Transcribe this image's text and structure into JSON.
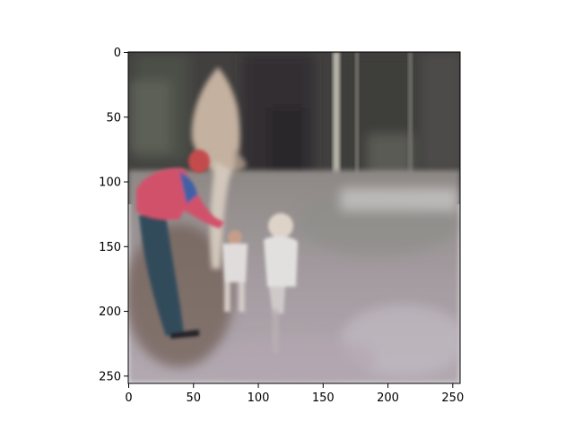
{
  "figure": {
    "background": "#ffffff",
    "axis_color": "#000000"
  },
  "image_content": {
    "description_tags": [
      "blurred-photo",
      "adult-in-red-shirt",
      "small-child-in-white",
      "white-horse",
      "trees-background",
      "dirt-ground"
    ],
    "colors": {
      "sky_trees": "#3f3d3c",
      "ground": "#a79ea3",
      "shirt_red": "#d8506a",
      "shirt_blue": "#3e5fa8",
      "pants": "#2e4a5a",
      "child_white": "#e9e6e6",
      "horse": "#c9b5a3"
    }
  },
  "axes": {
    "x": {
      "ticks": [
        {
          "value": 0,
          "label": "0"
        },
        {
          "value": 50,
          "label": "50"
        },
        {
          "value": 100,
          "label": "100"
        },
        {
          "value": 150,
          "label": "150"
        },
        {
          "value": 200,
          "label": "200"
        },
        {
          "value": 250,
          "label": "250"
        }
      ],
      "range": [
        0,
        256
      ]
    },
    "y": {
      "ticks": [
        {
          "value": 0,
          "label": "0"
        },
        {
          "value": 50,
          "label": "50"
        },
        {
          "value": 100,
          "label": "100"
        },
        {
          "value": 150,
          "label": "150"
        },
        {
          "value": 200,
          "label": "200"
        },
        {
          "value": 250,
          "label": "250"
        }
      ],
      "range": [
        0,
        256
      ],
      "inverted": true
    }
  }
}
